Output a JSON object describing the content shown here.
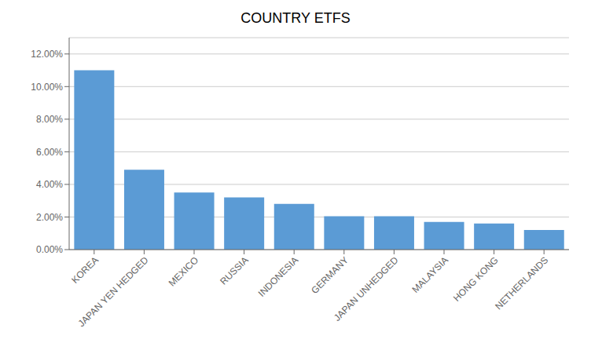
{
  "chart_data": {
    "type": "bar",
    "title": "COUNTRY ETFS",
    "categories": [
      "KOREA",
      "JAPAN YEN HEDGED",
      "MEXICO",
      "RUSSIA",
      "INDONESIA",
      "GERMANY",
      "JAPAN UNHEDGED",
      "MALAYSIA",
      "HONG KONG",
      "NETHERLANDS"
    ],
    "values": [
      0.11,
      0.049,
      0.035,
      0.032,
      0.028,
      0.0205,
      0.0205,
      0.017,
      0.016,
      0.012
    ],
    "color": "#5B9BD5",
    "ylim": [
      0,
      0.13
    ],
    "yticks": [
      {
        "value": 0.0,
        "label": "0.00%"
      },
      {
        "value": 0.02,
        "label": "2.00%"
      },
      {
        "value": 0.04,
        "label": "4.00%"
      },
      {
        "value": 0.06,
        "label": "6.00%"
      },
      {
        "value": 0.08,
        "label": "8.00%"
      },
      {
        "value": 0.1,
        "label": "10.00%"
      },
      {
        "value": 0.12,
        "label": "12.00%"
      }
    ],
    "grid": true
  }
}
